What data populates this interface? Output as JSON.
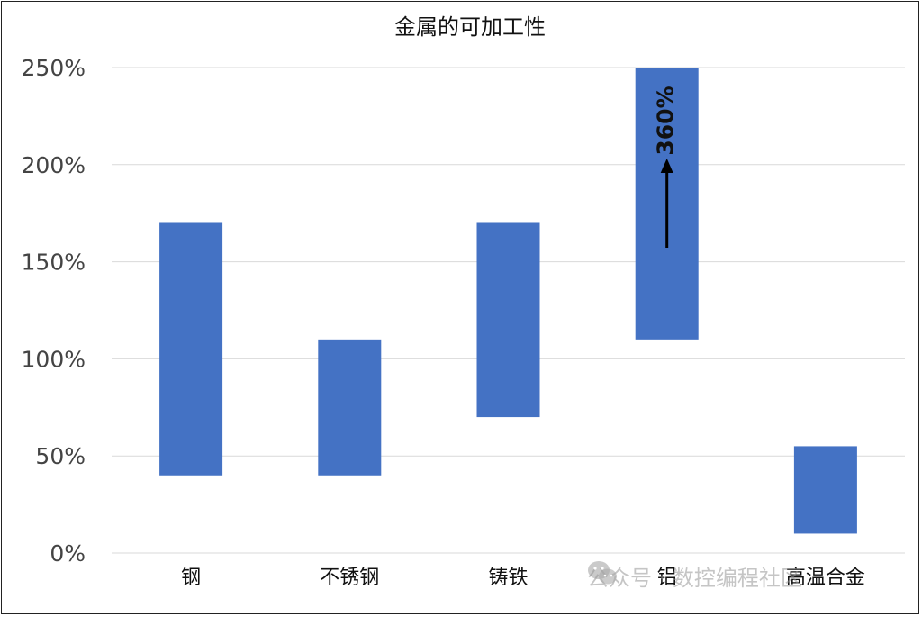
{
  "chart_data": {
    "type": "bar",
    "subtype": "floating-range",
    "title": "金属的可加工性",
    "categories": [
      "钢",
      "不锈钢",
      "铸铁",
      "铝",
      "高温合金"
    ],
    "series": [
      {
        "low": [
          40,
          40,
          70,
          110,
          10
        ],
        "high": [
          170,
          110,
          170,
          250,
          55
        ]
      }
    ],
    "ylim": [
      0,
      250
    ],
    "yticks": [
      0,
      50,
      100,
      150,
      200,
      250
    ],
    "ytick_labels": [
      "0%",
      "50%",
      "100%",
      "150%",
      "200%",
      "250%"
    ],
    "bar_color": "#4472c4",
    "grid": true,
    "annotations": [
      {
        "category": "铝",
        "text": "360%",
        "arrow": "up"
      }
    ]
  },
  "watermark": {
    "text": "公众号 · 数控编程社区",
    "icon": "wechat-icon"
  }
}
